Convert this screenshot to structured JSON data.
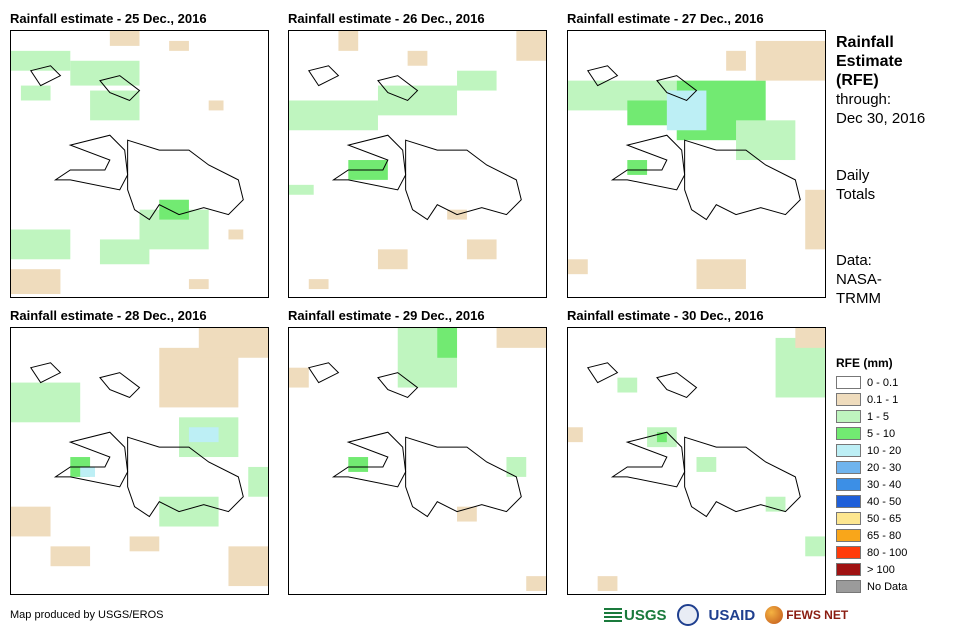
{
  "panels": [
    {
      "title": "Rainfall estimate - 25 Dec., 2016"
    },
    {
      "title": "Rainfall estimate - 26 Dec., 2016"
    },
    {
      "title": "Rainfall estimate - 27 Dec., 2016"
    },
    {
      "title": "Rainfall estimate - 28 Dec., 2016"
    },
    {
      "title": "Rainfall estimate - 29 Dec., 2016"
    },
    {
      "title": "Rainfall estimate - 30 Dec., 2016"
    }
  ],
  "side": {
    "heading_line1": "Rainfall",
    "heading_line2": "Estimate",
    "heading_line3": "(RFE)",
    "through_label": "through:",
    "through_date": "Dec 30, 2016",
    "totals_line1": "Daily",
    "totals_line2": "Totals",
    "source_line1": "Data:",
    "source_line2": "NASA-",
    "source_line3": "TRMM"
  },
  "legend": {
    "title": "RFE (mm)",
    "items": [
      {
        "label": "0 - 0.1",
        "color": "#ffffff"
      },
      {
        "label": "0.1 - 1",
        "color": "#efdcbd"
      },
      {
        "label": "1 - 5",
        "color": "#bff5bf"
      },
      {
        "label": "5 - 10",
        "color": "#72ea72"
      },
      {
        "label": "10 - 20",
        "color": "#bdeff5"
      },
      {
        "label": "20 - 30",
        "color": "#70b4ee"
      },
      {
        "label": "30 - 40",
        "color": "#3c8fe6"
      },
      {
        "label": "40 - 50",
        "color": "#1f5fd9"
      },
      {
        "label": "50 - 65",
        "color": "#fde68f"
      },
      {
        "label": "65 - 80",
        "color": "#f9a61a"
      },
      {
        "label": "80 - 100",
        "color": "#ff3b0a"
      },
      {
        "label": "> 100",
        "color": "#a01212"
      },
      {
        "label": "No Data",
        "color": "#9b9b9b"
      }
    ]
  },
  "footer": {
    "credit": "Map produced by USGS/EROS",
    "logos": [
      "USGS",
      "USAID",
      "FEWS NET"
    ]
  }
}
